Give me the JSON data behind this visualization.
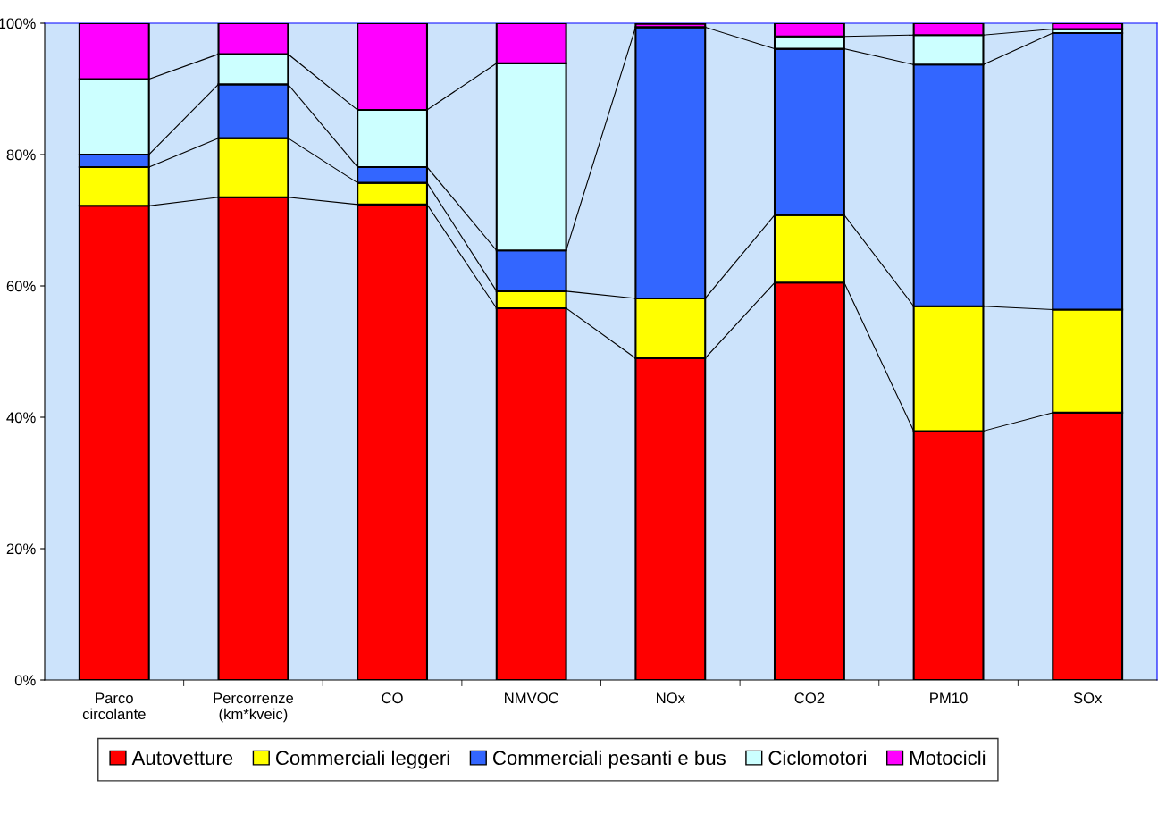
{
  "chart_data": {
    "type": "bar",
    "stacked": true,
    "categories": [
      "Parco\ncircolante",
      "Percorrenze\n(km*kveic)",
      "CO",
      "NMVOC",
      "NOx",
      "CO2",
      "PM10",
      "SOx"
    ],
    "series": [
      {
        "name": "Autovetture",
        "color": "#ff0000",
        "values": [
          72.2,
          73.5,
          72.4,
          56.6,
          49.0,
          60.5,
          37.9,
          40.7
        ]
      },
      {
        "name": "Commerciali leggeri",
        "color": "#ffff00",
        "values": [
          5.9,
          9.0,
          3.3,
          2.6,
          9.1,
          10.3,
          19.0,
          15.7
        ]
      },
      {
        "name": "Commerciali pesanti e bus",
        "color": "#3366ff",
        "values": [
          1.9,
          8.2,
          2.4,
          6.2,
          41.3,
          25.3,
          36.8,
          42.1
        ]
      },
      {
        "name": "Ciclomotori",
        "color": "#ccffff",
        "values": [
          11.5,
          4.6,
          8.7,
          28.5,
          null,
          1.9,
          4.5,
          0.6
        ]
      },
      {
        "name": "Motocicli",
        "color": "#ff00ff",
        "values": [
          8.5,
          4.7,
          13.2,
          6.1,
          0.5,
          2.0,
          1.8,
          0.9
        ]
      }
    ],
    "ylim": [
      0,
      100
    ],
    "yticks": [
      {
        "value": 0,
        "label": "0%"
      },
      {
        "value": 20,
        "label": "20%"
      },
      {
        "value": 40,
        "label": "40%"
      },
      {
        "value": 60,
        "label": "60%"
      },
      {
        "value": 80,
        "label": "80%"
      },
      {
        "value": 100,
        "label": "100%"
      }
    ],
    "grid": false,
    "legend": "bottom"
  }
}
